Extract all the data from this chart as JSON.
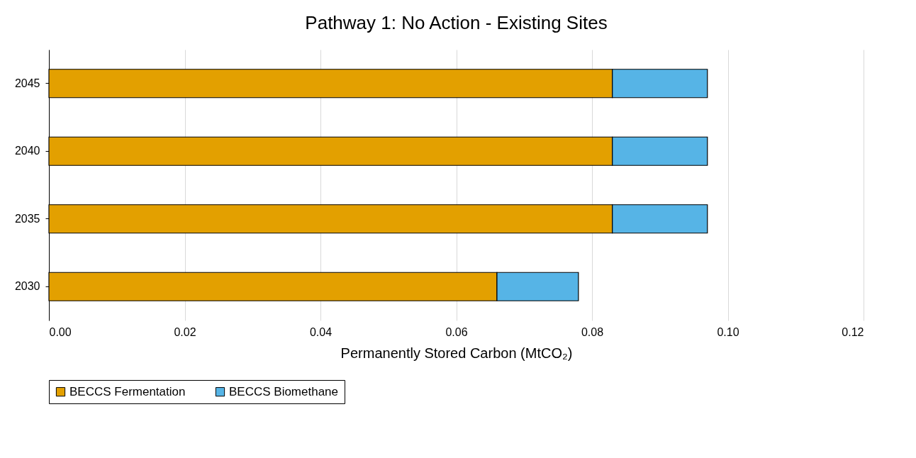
{
  "chart_data": {
    "type": "bar",
    "orientation": "horizontal",
    "stacked": true,
    "title": "Pathway 1: No Action  - Existing Sites",
    "xlabel": "Permanently Stored Carbon (MtCO₂)",
    "categories": [
      "2045",
      "2040",
      "2035",
      "2030"
    ],
    "series": [
      {
        "name": "BECCS Fermentation",
        "color": "#e3a000",
        "values": [
          0.083,
          0.083,
          0.083,
          0.066
        ]
      },
      {
        "name": "BECCS Biomethane",
        "color": "#56b4e6",
        "values": [
          0.014,
          0.014,
          0.014,
          0.012
        ]
      }
    ],
    "xlim": [
      0,
      0.12
    ],
    "xticks": [
      {
        "value": 0,
        "label": "0.00"
      },
      {
        "value": 0.02,
        "label": "0.02"
      },
      {
        "value": 0.04,
        "label": "0.04"
      },
      {
        "value": 0.06,
        "label": "0.06"
      },
      {
        "value": 0.08,
        "label": "0.08"
      },
      {
        "value": 0.1,
        "label": "0.10"
      },
      {
        "value": 0.12,
        "label": "0.12"
      }
    ],
    "grid": "x",
    "legend": "bottom"
  }
}
